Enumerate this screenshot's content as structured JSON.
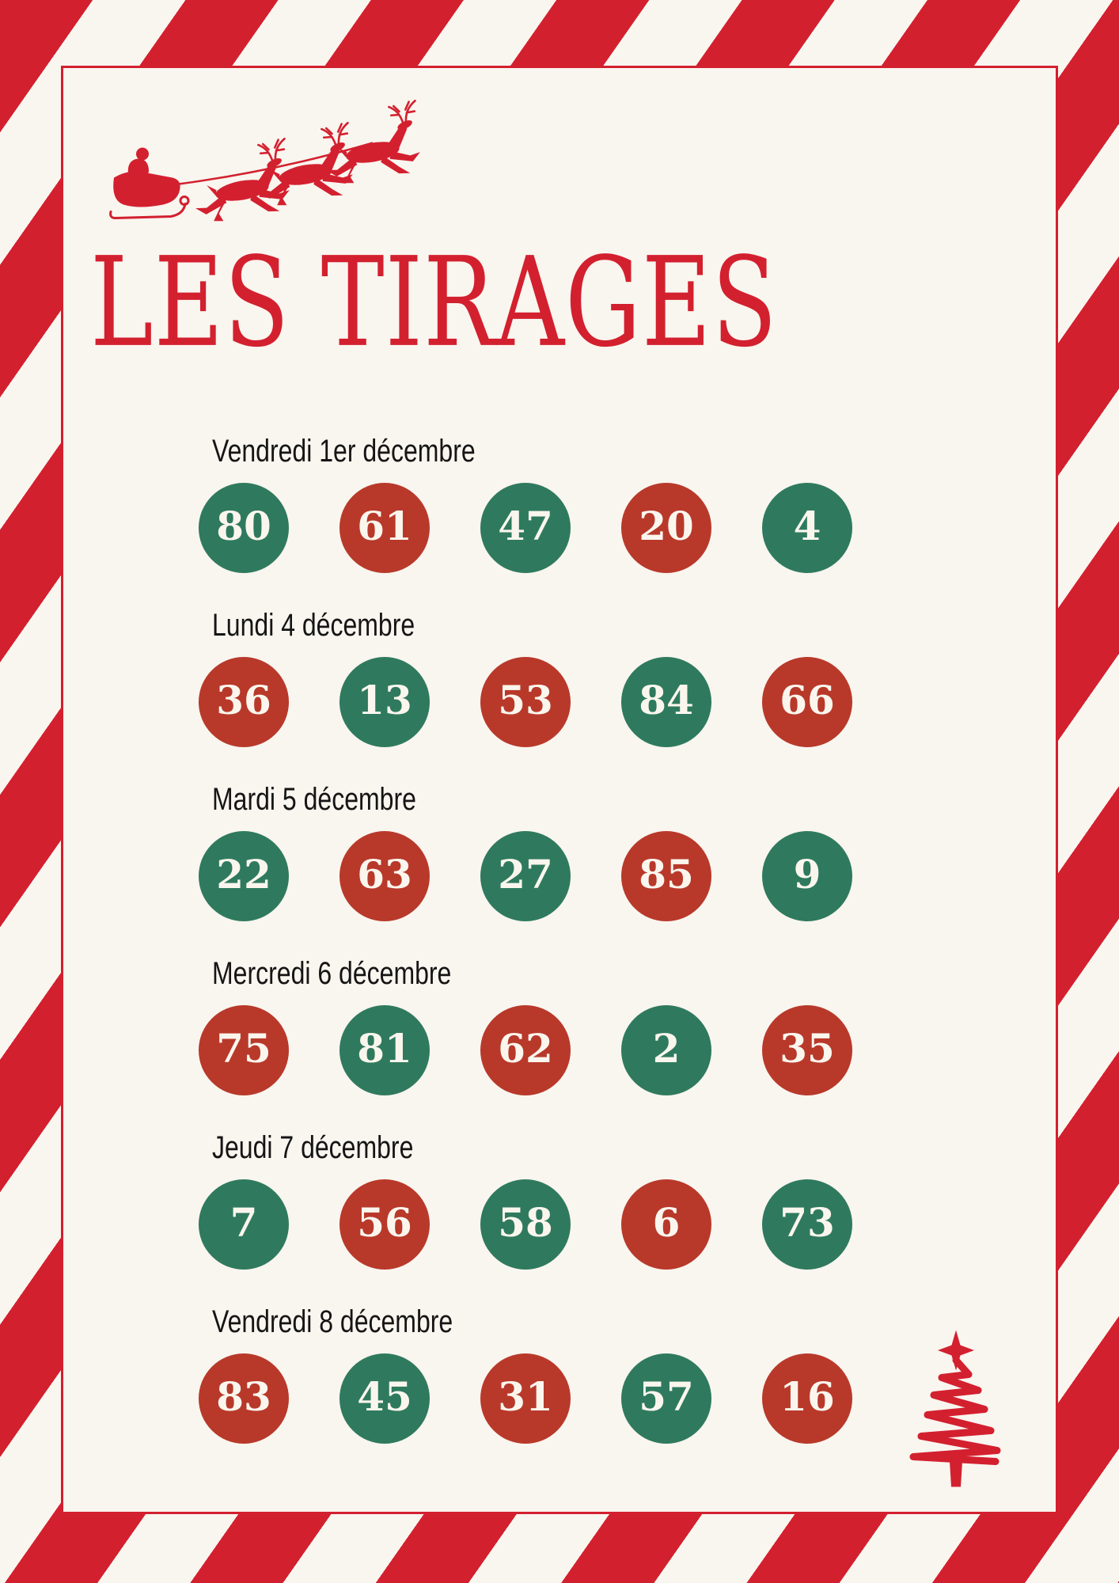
{
  "title": "LES TIRAGES",
  "colors": {
    "accent_red": "#d3202f",
    "ball_red": "#b8392a",
    "ball_green": "#2f7a5e",
    "background": "#f9f5ef",
    "date_text": "#151515"
  },
  "icons": {
    "top_left": "santa-sleigh-with-reindeer-icon",
    "bottom_right": "christmas-tree-icon"
  },
  "draws": [
    {
      "date": "Vendredi 1er décembre",
      "numbers": [
        {
          "value": "80",
          "color": "green"
        },
        {
          "value": "61",
          "color": "red"
        },
        {
          "value": "47",
          "color": "green"
        },
        {
          "value": "20",
          "color": "red"
        },
        {
          "value": "4",
          "color": "green"
        }
      ]
    },
    {
      "date": "Lundi 4 décembre",
      "numbers": [
        {
          "value": "36",
          "color": "red"
        },
        {
          "value": "13",
          "color": "green"
        },
        {
          "value": "53",
          "color": "red"
        },
        {
          "value": "84",
          "color": "green"
        },
        {
          "value": "66",
          "color": "red"
        }
      ]
    },
    {
      "date": "Mardi 5 décembre",
      "numbers": [
        {
          "value": "22",
          "color": "green"
        },
        {
          "value": "63",
          "color": "red"
        },
        {
          "value": "27",
          "color": "green"
        },
        {
          "value": "85",
          "color": "red"
        },
        {
          "value": "9",
          "color": "green"
        }
      ]
    },
    {
      "date": "Mercredi 6 décembre",
      "numbers": [
        {
          "value": "75",
          "color": "red"
        },
        {
          "value": "81",
          "color": "green"
        },
        {
          "value": "62",
          "color": "red"
        },
        {
          "value": "2",
          "color": "green"
        },
        {
          "value": "35",
          "color": "red"
        }
      ]
    },
    {
      "date": "Jeudi 7 décembre",
      "numbers": [
        {
          "value": "7",
          "color": "green"
        },
        {
          "value": "56",
          "color": "red"
        },
        {
          "value": "58",
          "color": "green"
        },
        {
          "value": "6",
          "color": "red"
        },
        {
          "value": "73",
          "color": "green"
        }
      ]
    },
    {
      "date": "Vendredi 8 décembre",
      "numbers": [
        {
          "value": "83",
          "color": "red"
        },
        {
          "value": "45",
          "color": "green"
        },
        {
          "value": "31",
          "color": "red"
        },
        {
          "value": "57",
          "color": "green"
        },
        {
          "value": "16",
          "color": "red"
        }
      ]
    }
  ]
}
